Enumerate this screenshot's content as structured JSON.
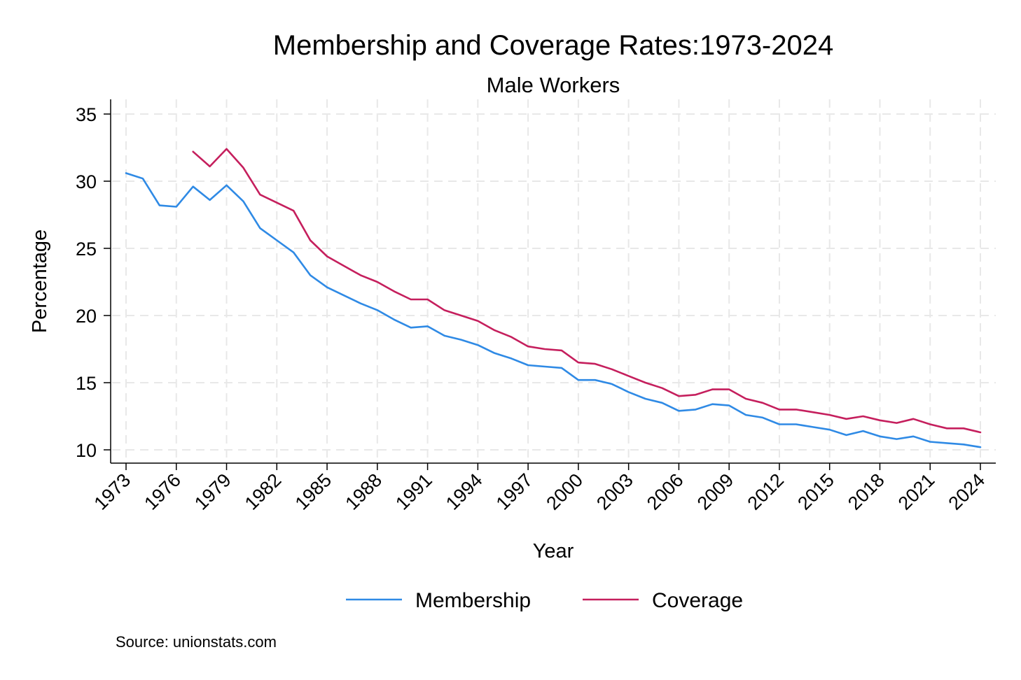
{
  "chart_data": {
    "type": "line",
    "title": "Membership and Coverage Rates:1973-2024",
    "subtitle": "Male Workers",
    "xlabel": "Year",
    "ylabel": "Percentage",
    "xlim": [
      1973,
      2024
    ],
    "ylim": [
      9,
      36
    ],
    "x_ticks": [
      "1973",
      "1976",
      "1979",
      "1982",
      "1985",
      "1988",
      "1991",
      "1994",
      "1997",
      "2000",
      "2003",
      "2006",
      "2009",
      "2012",
      "2015",
      "2018",
      "2021",
      "2024"
    ],
    "y_ticks": [
      "10",
      "15",
      "20",
      "25",
      "30",
      "35"
    ],
    "grid": true,
    "legend_position": "bottom",
    "note": "Source: unionstats.com",
    "series": [
      {
        "name": "Membership",
        "color": "#2f8ae5",
        "x": [
          1973,
          1974,
          1975,
          1976,
          1977,
          1978,
          1979,
          1980,
          1981,
          1982,
          1983,
          1984,
          1985,
          1986,
          1987,
          1988,
          1989,
          1990,
          1991,
          1992,
          1993,
          1994,
          1995,
          1996,
          1997,
          1998,
          1999,
          2000,
          2001,
          2002,
          2003,
          2004,
          2005,
          2006,
          2007,
          2008,
          2009,
          2010,
          2011,
          2012,
          2013,
          2014,
          2015,
          2016,
          2017,
          2018,
          2019,
          2020,
          2021,
          2022,
          2023,
          2024
        ],
        "values": [
          30.6,
          30.2,
          28.2,
          28.1,
          29.6,
          28.6,
          29.7,
          28.5,
          26.5,
          25.6,
          24.7,
          23.0,
          22.1,
          21.5,
          20.9,
          20.4,
          19.7,
          19.1,
          19.2,
          18.5,
          18.2,
          17.8,
          17.2,
          16.8,
          16.3,
          16.2,
          16.1,
          15.2,
          15.2,
          14.9,
          14.3,
          13.8,
          13.5,
          12.9,
          13.0,
          13.4,
          13.3,
          12.6,
          12.4,
          11.9,
          11.9,
          11.7,
          11.5,
          11.1,
          11.4,
          11.0,
          10.8,
          11.0,
          10.6,
          10.5,
          10.4,
          10.2
        ]
      },
      {
        "name": "Coverage",
        "color": "#c51f5d",
        "x": [
          1977,
          1978,
          1979,
          1980,
          1981,
          1982,
          1983,
          1984,
          1985,
          1986,
          1987,
          1988,
          1989,
          1990,
          1991,
          1992,
          1993,
          1994,
          1995,
          1996,
          1997,
          1998,
          1999,
          2000,
          2001,
          2002,
          2003,
          2004,
          2005,
          2006,
          2007,
          2008,
          2009,
          2010,
          2011,
          2012,
          2013,
          2014,
          2015,
          2016,
          2017,
          2018,
          2019,
          2020,
          2021,
          2022,
          2023,
          2024
        ],
        "values": [
          32.2,
          31.1,
          32.4,
          31.0,
          29.0,
          28.4,
          27.8,
          25.6,
          24.4,
          23.7,
          23.0,
          22.5,
          21.8,
          21.2,
          21.2,
          20.4,
          20.0,
          19.6,
          18.9,
          18.4,
          17.7,
          17.5,
          17.4,
          16.5,
          16.4,
          16.0,
          15.5,
          15.0,
          14.6,
          14.0,
          14.1,
          14.5,
          14.5,
          13.8,
          13.5,
          13.0,
          13.0,
          12.8,
          12.6,
          12.3,
          12.5,
          12.2,
          12.0,
          12.3,
          11.9,
          11.6,
          11.6,
          11.3
        ]
      }
    ]
  }
}
